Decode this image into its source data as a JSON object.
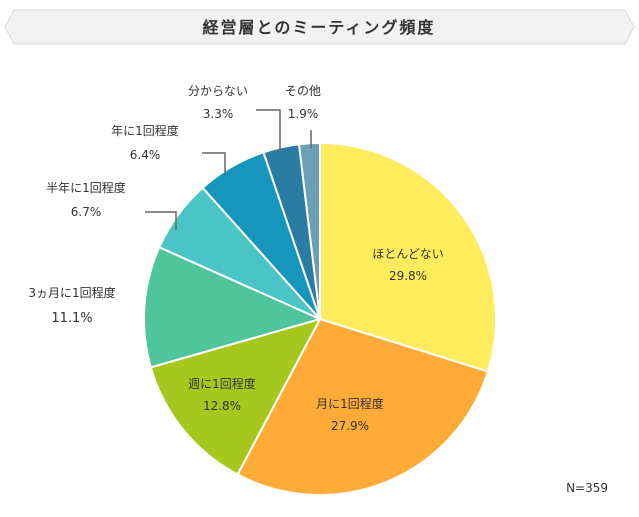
{
  "title": "経営層とのミーティング頻度",
  "note": "N=359",
  "colors": {
    "banner_fill": "#f2f2f2",
    "banner_stroke": "#d9d9d9",
    "leader": "#666666",
    "slice_stroke": "#ffffff"
  },
  "chart_data": {
    "type": "pie",
    "title": "経営層とのミーティング頻度",
    "unit": "%",
    "start": "12 o'clock",
    "direction": "clockwise",
    "slices": [
      {
        "label": "ほとんどない",
        "value": 29.8,
        "value_text": "29.8%",
        "color": "#ffec5c"
      },
      {
        "label": "月に1回程度",
        "value": 27.9,
        "value_text": "27.9%",
        "color": "#ffab38"
      },
      {
        "label": "週に1回程度",
        "value": 12.8,
        "value_text": "12.8%",
        "color": "#a6c81e"
      },
      {
        "label": "3ヵ月に1回程度",
        "value": 11.1,
        "value_text": "11.1%",
        "color": "#4ec59b"
      },
      {
        "label": "半年に1回程度",
        "value": 6.7,
        "value_text": "6.7%",
        "color": "#4ac4c6"
      },
      {
        "label": "年に1回程度",
        "value": 6.4,
        "value_text": "6.4%",
        "color": "#1696bc"
      },
      {
        "label": "分からない",
        "value": 3.3,
        "value_text": "3.3%",
        "color": "#2b7ca3"
      },
      {
        "label": "その他",
        "value": 1.9,
        "value_text": "1.9%",
        "color": "#6b9fb5"
      }
    ]
  }
}
